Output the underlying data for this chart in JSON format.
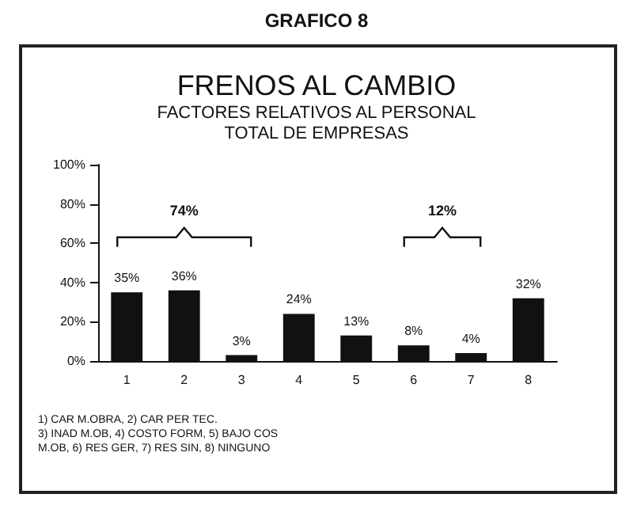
{
  "chart_data": {
    "type": "bar",
    "title": "FRENOS AL CAMBIO",
    "subtitle": "FACTORES RELATIVOS AL PERSONAL\nTOTAL DE EMPRESAS",
    "categories": [
      "1",
      "2",
      "3",
      "4",
      "5",
      "6",
      "7",
      "8"
    ],
    "values": [
      35,
      36,
      3,
      24,
      13,
      8,
      4,
      32
    ],
    "value_labels": [
      "35%",
      "36%",
      "3%",
      "24%",
      "13%",
      "8%",
      "4%",
      "32%"
    ],
    "color": "#111111",
    "ylim": [
      0,
      100
    ],
    "yticks": [
      {
        "value": 0,
        "label": "0%"
      },
      {
        "value": 20,
        "label": "20%"
      },
      {
        "value": 40,
        "label": "40%"
      },
      {
        "value": 60,
        "label": "60%"
      },
      {
        "value": 80,
        "label": "80%"
      },
      {
        "value": 100,
        "label": "100%"
      }
    ],
    "grid": false,
    "annotations": [
      "GRAFICO 8",
      "74%",
      "12%",
      "1) CAR M.OBRA, 2) CAR PER TEC.",
      "3) INAD M.OB, 4) COSTO FORM, 5) BAJO COS",
      "M.OB, 6) RES GER, 7) RES SIN, 8) NINGUNO"
    ]
  }
}
